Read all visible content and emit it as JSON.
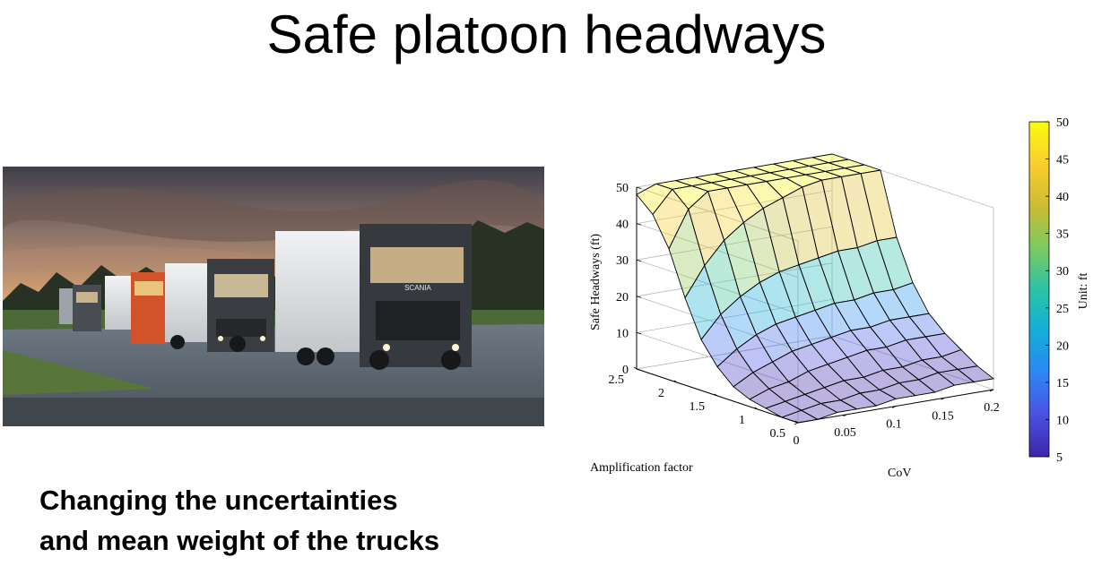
{
  "slide": {
    "title": "Safe platoon headways",
    "caption_line1": "Changing the uncertainties",
    "caption_line2": "and mean weight of the trucks"
  },
  "photo": {
    "truck_brand": "SCANIA"
  },
  "chart_data": {
    "type": "surface",
    "zlabel": "Safe Headways (ft)",
    "xlabel": "CoV",
    "ylabel": "Amplification factor",
    "x_ticks": [
      "0",
      "0.05",
      "0.1",
      "0.15",
      "0.2"
    ],
    "y_ticks": [
      "0.5",
      "1",
      "1.5",
      "2",
      "2.5"
    ],
    "z_ticks": [
      "0",
      "10",
      "20",
      "30",
      "40",
      "50"
    ],
    "xlim": [
      0,
      0.2
    ],
    "ylim": [
      0.5,
      2.5
    ],
    "zlim": [
      0,
      50
    ],
    "x": [
      0,
      0.02,
      0.04,
      0.06,
      0.08,
      0.1,
      0.12,
      0.14,
      0.16,
      0.18,
      0.2
    ],
    "y": [
      0.5,
      0.7,
      0.9,
      1.1,
      1.3,
      1.5,
      1.7,
      1.9,
      2.1,
      2.3,
      2.5
    ],
    "z": [
      [
        0,
        0,
        1,
        1,
        1,
        2,
        2,
        2,
        3,
        3,
        3
      ],
      [
        0,
        1,
        2,
        2,
        3,
        3,
        4,
        4,
        5,
        5,
        5
      ],
      [
        1,
        2,
        3,
        4,
        5,
        5,
        6,
        6,
        7,
        7,
        8
      ],
      [
        2,
        4,
        5,
        7,
        8,
        9,
        10,
        10,
        11,
        11,
        11
      ],
      [
        4,
        7,
        9,
        11,
        12,
        13,
        14,
        14,
        15,
        15,
        15
      ],
      [
        8,
        12,
        15,
        17,
        18,
        19,
        20,
        20,
        21,
        21,
        22
      ],
      [
        14,
        20,
        24,
        27,
        29,
        30,
        31,
        32,
        32,
        33,
        33
      ],
      [
        24,
        32,
        38,
        42,
        45,
        47,
        49,
        50,
        50,
        50,
        50
      ],
      [
        36,
        46,
        50,
        50,
        50,
        50,
        50,
        50,
        50,
        50,
        50
      ],
      [
        44,
        50,
        50,
        50,
        50,
        50,
        50,
        50,
        50,
        50,
        50
      ],
      [
        48,
        50,
        50,
        50,
        50,
        50,
        50,
        50,
        50,
        50,
        50
      ]
    ],
    "colorbar": {
      "label": "Unit: ft",
      "ticks": [
        "5",
        "10",
        "15",
        "20",
        "25",
        "30",
        "35",
        "40",
        "45",
        "50"
      ],
      "range": [
        5,
        50
      ],
      "colormap": [
        "#3e26a8",
        "#4a50e4",
        "#2d86f4",
        "#13aeda",
        "#2dc3a4",
        "#7bcb5e",
        "#cebb34",
        "#fcce2e",
        "#f9fb0e"
      ]
    },
    "grid": true,
    "face_alpha": 0.35
  }
}
